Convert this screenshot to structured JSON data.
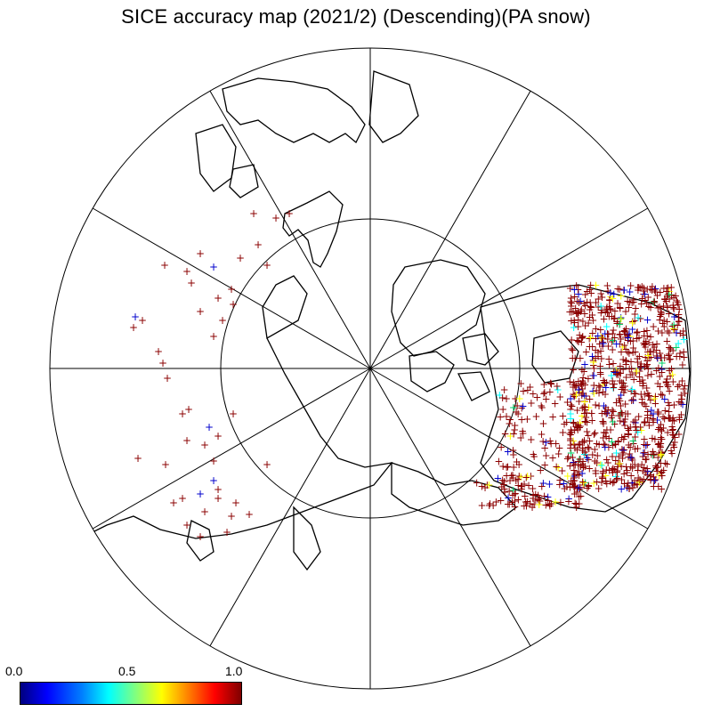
{
  "title": "SICE accuracy map (2021/2) (Descending)(PA snow)",
  "map": {
    "projection": "north-polar-stereographic",
    "graticule": {
      "meridian_spacing_deg": 30,
      "parallel_deg": 60
    },
    "marker": "+",
    "colors": {
      "high": "#8b0000",
      "low": "#0000cc",
      "mid": "#ffff00",
      "cyan": "#00ffff",
      "green": "#00cc66",
      "coast": "#000000"
    }
  },
  "colorbar": {
    "min_label": "0.0",
    "mid_label": "0.5",
    "max_label": "1.0",
    "range": [
      0.0,
      1.0
    ],
    "colormap": "jet"
  }
}
